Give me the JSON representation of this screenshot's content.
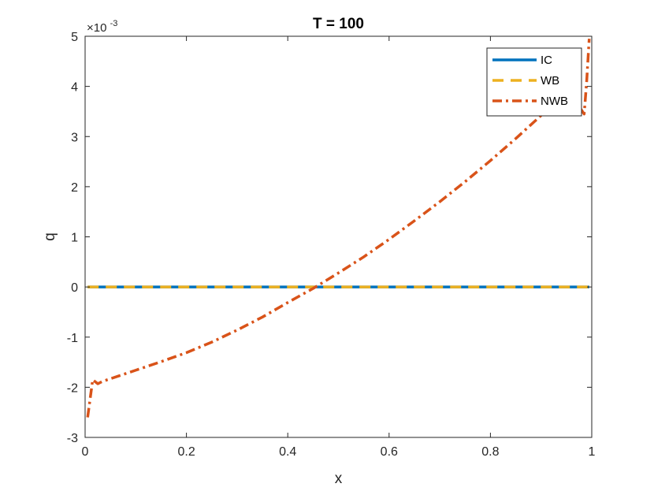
{
  "chart_data": {
    "type": "line",
    "title": "T = 100",
    "xlabel": "x",
    "ylabel": "q",
    "y_multiplier_base": "×10",
    "y_multiplier_exp": "-3",
    "xlim": [
      0,
      1
    ],
    "ylim": [
      -3,
      5
    ],
    "x_ticks": [
      0,
      0.2,
      0.4,
      0.6,
      0.8,
      1
    ],
    "x_tick_labels": [
      "0",
      "0.2",
      "0.4",
      "0.6",
      "0.8",
      "1"
    ],
    "y_ticks": [
      -3,
      -2,
      -1,
      0,
      1,
      2,
      3,
      4,
      5
    ],
    "y_tick_labels": [
      "-3",
      "-2",
      "-1",
      "0",
      "1",
      "2",
      "3",
      "4",
      "5"
    ],
    "grid": false,
    "legend_position": "top-right",
    "series": [
      {
        "name": "IC",
        "color": "#0072BD",
        "style": "solid",
        "x": [
          0.005,
          0.995
        ],
        "y": [
          0,
          0
        ]
      },
      {
        "name": "WB",
        "color": "#EDB120",
        "style": "dashed",
        "x": [
          0.005,
          0.995
        ],
        "y": [
          0,
          0
        ]
      },
      {
        "name": "NWB",
        "color": "#D95319",
        "style": "dashdot",
        "x": [
          0.005,
          0.015,
          0.025,
          0.035,
          0.05,
          0.1,
          0.15,
          0.2,
          0.25,
          0.3,
          0.35,
          0.4,
          0.45,
          0.5,
          0.55,
          0.6,
          0.65,
          0.7,
          0.75,
          0.8,
          0.85,
          0.9,
          0.95,
          0.975,
          0.985,
          0.99,
          0.995
        ],
        "y": [
          -2.6,
          -1.85,
          -1.93,
          -1.88,
          -1.83,
          -1.66,
          -1.49,
          -1.31,
          -1.1,
          -0.86,
          -0.6,
          -0.31,
          -0.03,
          0.28,
          0.6,
          0.95,
          1.32,
          1.7,
          2.1,
          2.52,
          2.96,
          3.42,
          3.68,
          3.6,
          3.45,
          4.1,
          4.95
        ]
      }
    ]
  }
}
